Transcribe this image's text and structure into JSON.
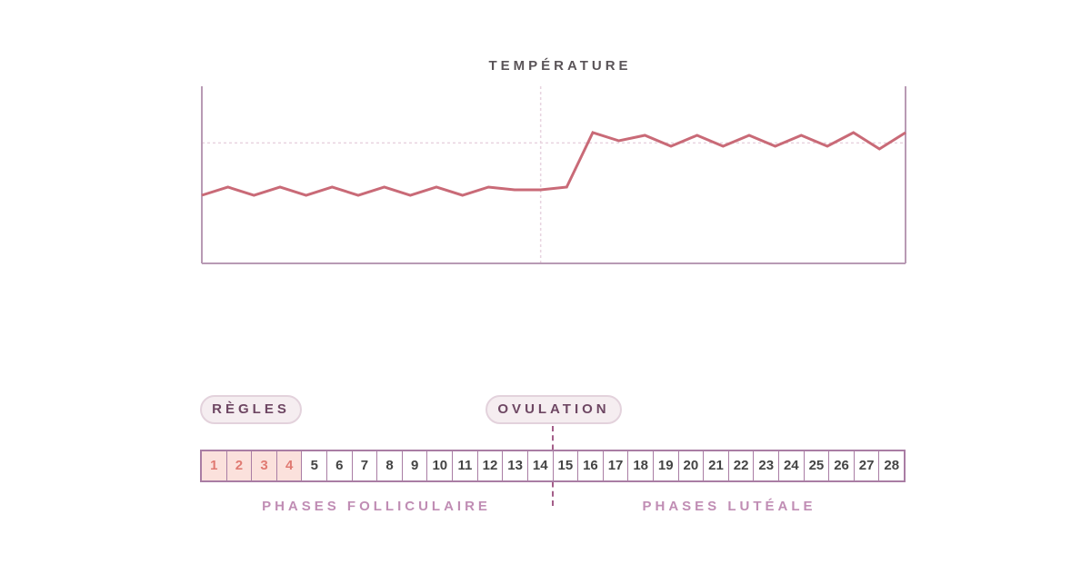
{
  "chart_data": {
    "type": "line",
    "title": "TEMPÉRATURE",
    "x": [
      1,
      2,
      3,
      4,
      5,
      6,
      7,
      8,
      9,
      10,
      11,
      12,
      13,
      14,
      15,
      16,
      17,
      18,
      19,
      20,
      21,
      22,
      23,
      24,
      25,
      26,
      27,
      28
    ],
    "series": [
      {
        "values": [
          1.0,
          1.3,
          1.0,
          1.3,
          1.0,
          1.3,
          1.0,
          1.3,
          1.0,
          1.3,
          1.0,
          1.3,
          1.2,
          1.2,
          1.3,
          3.3,
          3.0,
          3.2,
          2.8,
          3.2,
          2.8,
          3.2,
          2.8,
          3.2,
          2.8,
          3.3,
          2.7,
          3.3
        ]
      }
    ],
    "reference_x": 14,
    "ylim": [
      -1.5,
      5.0
    ],
    "grid": false,
    "colors": {
      "line": "#c96a77",
      "axis": "#b89ab4",
      "guide": "#e8d3df"
    }
  },
  "labels": {
    "regles": "RÈGLES",
    "ovulation": "OVULATION",
    "phase_follicular": "PHASES FOLLICULAIRE",
    "phase_luteal": "PHASES LUTÉALE"
  },
  "days": [
    "1",
    "2",
    "3",
    "4",
    "5",
    "6",
    "7",
    "8",
    "9",
    "10",
    "11",
    "12",
    "13",
    "14",
    "15",
    "16",
    "17",
    "18",
    "19",
    "20",
    "21",
    "22",
    "23",
    "24",
    "25",
    "26",
    "27",
    "28"
  ],
  "period_days": [
    "1",
    "2",
    "3",
    "4"
  ],
  "colors": {
    "period_bg": "#fbe1dc",
    "period_text": "#e07a72",
    "strip_border": "#a97da4",
    "pill_bg": "#f5edf0",
    "pill_text": "#6e4763",
    "phase_text": "#c08db4"
  }
}
